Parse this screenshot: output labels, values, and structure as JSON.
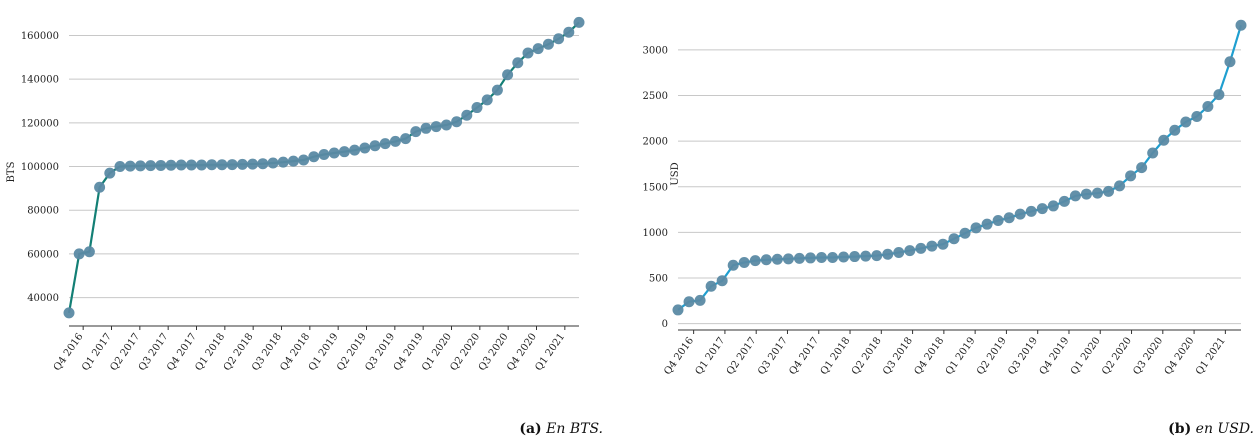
{
  "chart_data": [
    {
      "type": "line",
      "ylabel": "BTS",
      "y_ticks": [
        40000,
        60000,
        80000,
        100000,
        120000,
        140000,
        160000
      ],
      "ylim": [
        27000,
        168000
      ],
      "x_tick_labels": [
        "Q4 2016",
        "Q1 2017",
        "Q2 2017",
        "Q3 2017",
        "Q4 2017",
        "Q1 2018",
        "Q2 2018",
        "Q3 2018",
        "Q4 2018",
        "Q1 2019",
        "Q2 2019",
        "Q3 2019",
        "Q4 2019",
        "Q1 2020",
        "Q2 2020",
        "Q3 2020",
        "Q4 2020",
        "Q1 2021"
      ],
      "line_color": "#137f75",
      "marker_color": "#5b8aa4",
      "values": [
        33000,
        60000,
        61000,
        90500,
        97000,
        100000,
        100200,
        100300,
        100400,
        100500,
        100600,
        100700,
        100700,
        100700,
        100800,
        100800,
        100900,
        101000,
        101100,
        101300,
        101600,
        102000,
        102500,
        103000,
        104500,
        105500,
        106200,
        106800,
        107500,
        108500,
        109500,
        110500,
        111500,
        112800,
        116000,
        117500,
        118300,
        119000,
        120500,
        123500,
        127000,
        130500,
        135000,
        142000,
        147500,
        152000,
        154000,
        156000,
        158500,
        161500,
        166000
      ],
      "grid": true,
      "caption": {
        "tag": "(a)",
        "text": "En BTS."
      }
    },
    {
      "type": "line",
      "ylabel": "USD",
      "y_ticks": [
        0,
        500,
        1000,
        1500,
        2000,
        2500,
        3000
      ],
      "ylim": [
        -70,
        3350
      ],
      "x_tick_labels": [
        "Q4 2016",
        "Q1 2017",
        "Q2 2017",
        "Q3 2017",
        "Q4 2017",
        "Q1 2018",
        "Q2 2018",
        "Q3 2018",
        "Q4 2018",
        "Q1 2019",
        "Q2 2019",
        "Q3 2019",
        "Q4 2019",
        "Q1 2020",
        "Q2 2020",
        "Q3 2020",
        "Q4 2020",
        "Q1 2021"
      ],
      "line_color": "#1f9fd0",
      "marker_color": "#5b8aa4",
      "values": [
        150,
        240,
        255,
        410,
        470,
        640,
        670,
        690,
        700,
        705,
        710,
        715,
        720,
        725,
        725,
        730,
        735,
        740,
        745,
        760,
        780,
        800,
        825,
        850,
        870,
        930,
        990,
        1050,
        1090,
        1130,
        1160,
        1200,
        1230,
        1260,
        1290,
        1340,
        1400,
        1420,
        1430,
        1450,
        1510,
        1620,
        1710,
        1870,
        2010,
        2120,
        2210,
        2270,
        2380,
        2510,
        2870,
        3270
      ],
      "grid": true,
      "caption": {
        "tag": "(b)",
        "text": "en USD."
      }
    }
  ]
}
